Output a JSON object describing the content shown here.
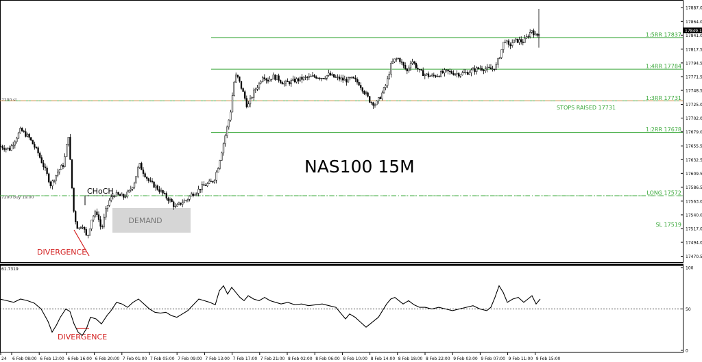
{
  "chart_data": {
    "type": "candlestick",
    "title": "NAS100 15M",
    "price_axis": {
      "ticks": [
        "17887.0",
        "17864.0",
        "17841.0",
        "17817.5",
        "17794.5",
        "17771.5",
        "17748.5",
        "17725.0",
        "17702.0",
        "17679.0",
        "17655.5",
        "17632.5",
        "17609.5",
        "17586.5",
        "17563.0",
        "17540.0",
        "17517.0",
        "17494.0",
        "17470.5"
      ],
      "current_price_label": "17849.1",
      "range": [
        17462,
        17893
      ]
    },
    "time_axis": {
      "labels": [
        "24",
        "6 Feb 08:00",
        "6 Feb 12:00",
        "6 Feb 16:00",
        "6 Feb 20:00",
        "7 Feb 01:00",
        "7 Feb 05:00",
        "7 Feb 09:00",
        "7 Feb 13:00",
        "7 Feb 17:00",
        "7 Feb 21:00",
        "8 Feb 02:00",
        "8 Feb 06:00",
        "8 Feb 10:00",
        "8 Feb 14:00",
        "8 Feb 18:00",
        "8 Feb 22:00",
        "9 Feb 03:00",
        "9 Feb 07:00",
        "9 Feb 11:00",
        "9 Feb 15:00"
      ]
    },
    "levels": [
      {
        "label": "1:5RR 17837",
        "value": 17837,
        "color": "#3aa83a",
        "style": "solid"
      },
      {
        "label": "1:4RR 17784",
        "value": 17784,
        "color": "#3aa83a",
        "style": "solid"
      },
      {
        "label": "1:3RR 17731",
        "value": 17731,
        "color": "#3aa83a",
        "style": "solid"
      },
      {
        "label": "1:2RR 17678",
        "value": 17678,
        "color": "#3aa83a",
        "style": "solid"
      },
      {
        "label": "LONG 17572",
        "value": 17572,
        "color": "#3aa83a",
        "style": "dashdot"
      },
      {
        "label": "SL 17519",
        "value": 17519,
        "color": "#3aa83a",
        "style": "none"
      }
    ],
    "order_lines": [
      {
        "label": "7200 sl",
        "value": 17731,
        "color": "#ff8c5a"
      },
      {
        "label": "7200 buy 19.00",
        "value": 17572,
        "color": "#3aa83a"
      }
    ],
    "annotations": {
      "stops_raised": "STOPS RAISED 17731",
      "choch": "CHoCH",
      "demand": "DEMAND",
      "divergence_price": "DIVERGENCE",
      "divergence_indicator": "DIVERGENCE"
    },
    "close_path": [
      [
        0,
        17655
      ],
      [
        14,
        17650
      ],
      [
        30,
        17682
      ],
      [
        42,
        17670
      ],
      [
        55,
        17645
      ],
      [
        66,
        17615
      ],
      [
        74,
        17590
      ],
      [
        84,
        17612
      ],
      [
        93,
        17625
      ],
      [
        100,
        17675
      ],
      [
        104,
        17600
      ],
      [
        108,
        17540
      ],
      [
        114,
        17515
      ],
      [
        120,
        17525
      ],
      [
        127,
        17500
      ],
      [
        134,
        17535
      ],
      [
        141,
        17545
      ],
      [
        148,
        17515
      ],
      [
        155,
        17550
      ],
      [
        160,
        17565
      ],
      [
        167,
        17575
      ],
      [
        174,
        17572
      ],
      [
        181,
        17570
      ],
      [
        188,
        17578
      ],
      [
        196,
        17595
      ],
      [
        203,
        17625
      ],
      [
        210,
        17610
      ],
      [
        218,
        17595
      ],
      [
        226,
        17588
      ],
      [
        234,
        17580
      ],
      [
        242,
        17570
      ],
      [
        250,
        17562
      ],
      [
        256,
        17552
      ],
      [
        264,
        17560
      ],
      [
        272,
        17565
      ],
      [
        280,
        17575
      ],
      [
        288,
        17580
      ],
      [
        296,
        17588
      ],
      [
        304,
        17592
      ],
      [
        312,
        17598
      ],
      [
        318,
        17620
      ],
      [
        324,
        17650
      ],
      [
        330,
        17680
      ],
      [
        336,
        17710
      ],
      [
        341,
        17760
      ],
      [
        345,
        17775
      ],
      [
        350,
        17760
      ],
      [
        356,
        17740
      ],
      [
        361,
        17720
      ],
      [
        366,
        17735
      ],
      [
        372,
        17750
      ],
      [
        378,
        17760
      ],
      [
        384,
        17775
      ],
      [
        390,
        17765
      ],
      [
        398,
        17772
      ],
      [
        406,
        17768
      ],
      [
        414,
        17760
      ],
      [
        422,
        17762
      ],
      [
        430,
        17765
      ],
      [
        440,
        17768
      ],
      [
        450,
        17770
      ],
      [
        460,
        17772
      ],
      [
        470,
        17770
      ],
      [
        480,
        17775
      ],
      [
        488,
        17770
      ],
      [
        496,
        17768
      ],
      [
        504,
        17765
      ],
      [
        514,
        17768
      ],
      [
        524,
        17760
      ],
      [
        532,
        17745
      ],
      [
        540,
        17730
      ],
      [
        548,
        17725
      ],
      [
        556,
        17740
      ],
      [
        564,
        17760
      ],
      [
        570,
        17790
      ],
      [
        576,
        17800
      ],
      [
        582,
        17802
      ],
      [
        588,
        17790
      ],
      [
        594,
        17780
      ],
      [
        600,
        17800
      ],
      [
        606,
        17790
      ],
      [
        612,
        17780
      ],
      [
        620,
        17775
      ],
      [
        630,
        17772
      ],
      [
        640,
        17775
      ],
      [
        650,
        17780
      ],
      [
        660,
        17778
      ],
      [
        670,
        17776
      ],
      [
        680,
        17778
      ],
      [
        690,
        17782
      ],
      [
        700,
        17786
      ],
      [
        710,
        17784
      ],
      [
        718,
        17784
      ],
      [
        724,
        17790
      ],
      [
        730,
        17810
      ],
      [
        736,
        17835
      ],
      [
        742,
        17822
      ],
      [
        748,
        17830
      ],
      [
        756,
        17832
      ],
      [
        764,
        17830
      ],
      [
        770,
        17840
      ],
      [
        776,
        17850
      ],
      [
        782,
        17838
      ],
      [
        788,
        17849
      ]
    ],
    "indicator": {
      "label": "61.7319",
      "ticks": [
        "100",
        "50",
        "0"
      ],
      "range": [
        0,
        100
      ],
      "level": 50,
      "values": [
        [
          0,
          62
        ],
        [
          10,
          60
        ],
        [
          20,
          58
        ],
        [
          30,
          62
        ],
        [
          40,
          60
        ],
        [
          50,
          57
        ],
        [
          60,
          50
        ],
        [
          70,
          35
        ],
        [
          76,
          22
        ],
        [
          82,
          30
        ],
        [
          88,
          40
        ],
        [
          96,
          50
        ],
        [
          102,
          47
        ],
        [
          108,
          32
        ],
        [
          114,
          22
        ],
        [
          120,
          18
        ],
        [
          126,
          26
        ],
        [
          132,
          40
        ],
        [
          140,
          38
        ],
        [
          148,
          32
        ],
        [
          156,
          42
        ],
        [
          162,
          48
        ],
        [
          170,
          58
        ],
        [
          178,
          56
        ],
        [
          186,
          52
        ],
        [
          194,
          58
        ],
        [
          202,
          62
        ],
        [
          210,
          56
        ],
        [
          218,
          50
        ],
        [
          226,
          46
        ],
        [
          234,
          45
        ],
        [
          242,
          46
        ],
        [
          250,
          42
        ],
        [
          258,
          40
        ],
        [
          266,
          44
        ],
        [
          274,
          48
        ],
        [
          282,
          55
        ],
        [
          290,
          62
        ],
        [
          298,
          60
        ],
        [
          306,
          58
        ],
        [
          314,
          55
        ],
        [
          320,
          72
        ],
        [
          326,
          78
        ],
        [
          332,
          68
        ],
        [
          338,
          76
        ],
        [
          344,
          70
        ],
        [
          350,
          64
        ],
        [
          356,
          60
        ],
        [
          362,
          66
        ],
        [
          370,
          62
        ],
        [
          378,
          60
        ],
        [
          386,
          64
        ],
        [
          394,
          60
        ],
        [
          402,
          58
        ],
        [
          410,
          56
        ],
        [
          420,
          58
        ],
        [
          430,
          55
        ],
        [
          440,
          56
        ],
        [
          450,
          54
        ],
        [
          460,
          55
        ],
        [
          470,
          56
        ],
        [
          480,
          54
        ],
        [
          490,
          52
        ],
        [
          498,
          44
        ],
        [
          504,
          38
        ],
        [
          510,
          44
        ],
        [
          518,
          40
        ],
        [
          526,
          34
        ],
        [
          534,
          28
        ],
        [
          540,
          32
        ],
        [
          546,
          36
        ],
        [
          552,
          40
        ],
        [
          558,
          48
        ],
        [
          564,
          56
        ],
        [
          570,
          62
        ],
        [
          576,
          64
        ],
        [
          582,
          60
        ],
        [
          588,
          56
        ],
        [
          596,
          60
        ],
        [
          604,
          55
        ],
        [
          612,
          52
        ],
        [
          620,
          52
        ],
        [
          630,
          50
        ],
        [
          640,
          52
        ],
        [
          650,
          50
        ],
        [
          660,
          48
        ],
        [
          670,
          50
        ],
        [
          680,
          52
        ],
        [
          690,
          54
        ],
        [
          700,
          50
        ],
        [
          710,
          48
        ],
        [
          716,
          52
        ],
        [
          722,
          64
        ],
        [
          728,
          78
        ],
        [
          734,
          70
        ],
        [
          740,
          58
        ],
        [
          748,
          62
        ],
        [
          756,
          64
        ],
        [
          764,
          58
        ],
        [
          770,
          62
        ],
        [
          776,
          66
        ],
        [
          782,
          56
        ],
        [
          788,
          62
        ]
      ]
    }
  }
}
